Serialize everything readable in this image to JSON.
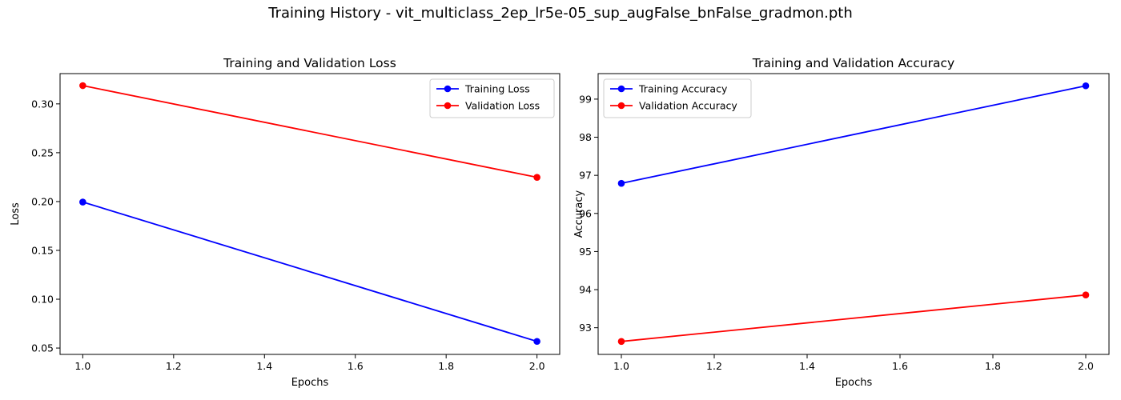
{
  "suptitle": "Training History - vit_multiclass_2ep_lr5e-05_sup_augFalse_bnFalse_gradmon.pth",
  "chart_data": [
    {
      "type": "line",
      "title": "Training and Validation Loss",
      "xlabel": "Epochs",
      "ylabel": "Loss",
      "xlim": [
        0.95,
        2.05
      ],
      "ylim": [
        0.0435,
        0.331
      ],
      "xticks": [
        1.0,
        1.2,
        1.4,
        1.6,
        1.8,
        2.0
      ],
      "xtick_labels": [
        "1.0",
        "1.2",
        "1.4",
        "1.6",
        "1.8",
        "2.0"
      ],
      "yticks": [
        0.05,
        0.1,
        0.15,
        0.2,
        0.25,
        0.3
      ],
      "ytick_labels": [
        "0.05",
        "0.10",
        "0.15",
        "0.20",
        "0.25",
        "0.30"
      ],
      "legend": "top-right",
      "grid": false,
      "series": [
        {
          "name": "Training Loss",
          "color": "#0000ff",
          "x": [
            1.0,
            2.0
          ],
          "y": [
            0.1995,
            0.0568
          ]
        },
        {
          "name": "Validation Loss",
          "color": "#ff0000",
          "x": [
            1.0,
            2.0
          ],
          "y": [
            0.3187,
            0.2248
          ]
        }
      ]
    },
    {
      "type": "line",
      "title": "Training and Validation Accuracy",
      "xlabel": "Epochs",
      "ylabel": "Accuracy",
      "xlim": [
        0.95,
        2.05
      ],
      "ylim": [
        92.3,
        99.67
      ],
      "xticks": [
        1.0,
        1.2,
        1.4,
        1.6,
        1.8,
        2.0
      ],
      "xtick_labels": [
        "1.0",
        "1.2",
        "1.4",
        "1.6",
        "1.8",
        "2.0"
      ],
      "yticks": [
        93,
        94,
        95,
        96,
        97,
        98,
        99
      ],
      "ytick_labels": [
        "93",
        "94",
        "95",
        "96",
        "97",
        "98",
        "99"
      ],
      "legend": "top-left",
      "grid": false,
      "series": [
        {
          "name": "Training Accuracy",
          "color": "#0000ff",
          "x": [
            1.0,
            2.0
          ],
          "y": [
            96.79,
            99.35
          ]
        },
        {
          "name": "Validation Accuracy",
          "color": "#ff0000",
          "x": [
            1.0,
            2.0
          ],
          "y": [
            92.64,
            93.86
          ]
        }
      ]
    }
  ]
}
